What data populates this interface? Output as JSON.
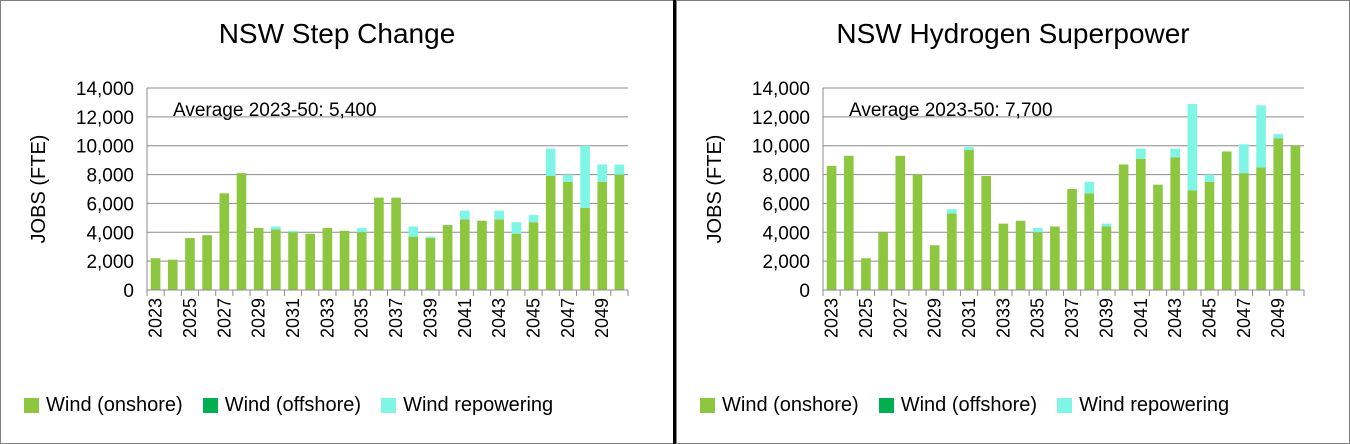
{
  "chart_data": [
    {
      "type": "bar",
      "stacked": true,
      "title": "NSW Step Change",
      "ylabel": "JOBS (FTE)",
      "xlabel": "",
      "ylim": [
        0,
        14000
      ],
      "yticks": [
        "0",
        "2,000",
        "4,000",
        "6,000",
        "8,000",
        "10,000",
        "12,000",
        "14,000"
      ],
      "xtick_labels": [
        "2023",
        "2025",
        "2027",
        "2029",
        "2031",
        "2033",
        "2035",
        "2037",
        "2039",
        "2041",
        "2043",
        "2045",
        "2047",
        "2049"
      ],
      "annotation": "Average 2023-50: 5,400",
      "categories": [
        "2023",
        "2024",
        "2025",
        "2026",
        "2027",
        "2028",
        "2029",
        "2030",
        "2031",
        "2032",
        "2033",
        "2034",
        "2035",
        "2036",
        "2037",
        "2038",
        "2039",
        "2040",
        "2041",
        "2042",
        "2043",
        "2044",
        "2045",
        "2046",
        "2047",
        "2048",
        "2049",
        "2050"
      ],
      "series": [
        {
          "name": "Wind (onshore)",
          "color": "#8dc63f",
          "values": [
            2200,
            2100,
            3600,
            3800,
            6700,
            8100,
            4300,
            4200,
            4000,
            3900,
            4300,
            4100,
            4000,
            6400,
            6400,
            3700,
            3600,
            4500,
            4900,
            4800,
            4900,
            3900,
            4700,
            7900,
            7500,
            5700,
            7500,
            8000
          ]
        },
        {
          "name": "Wind (offshore)",
          "color": "#00b050",
          "values": [
            0,
            0,
            0,
            0,
            0,
            0,
            0,
            0,
            0,
            0,
            0,
            0,
            0,
            0,
            0,
            0,
            0,
            0,
            0,
            0,
            0,
            0,
            0,
            0,
            0,
            0,
            0,
            0
          ]
        },
        {
          "name": "Wind repowering",
          "color": "#7ff5e6",
          "values": [
            0,
            0,
            0,
            0,
            0,
            0,
            0,
            200,
            100,
            0,
            0,
            0,
            300,
            0,
            0,
            700,
            100,
            0,
            600,
            0,
            600,
            800,
            500,
            1900,
            500,
            4300,
            1200,
            700
          ]
        }
      ],
      "legend_position": "bottom"
    },
    {
      "type": "bar",
      "stacked": true,
      "title": "NSW Hydrogen Superpower",
      "ylabel": "JOBS (FTE)",
      "xlabel": "",
      "ylim": [
        0,
        14000
      ],
      "yticks": [
        "0",
        "2,000",
        "4,000",
        "6,000",
        "8,000",
        "10,000",
        "12,000",
        "14,000"
      ],
      "xtick_labels": [
        "2023",
        "2025",
        "2027",
        "2029",
        "2031",
        "2033",
        "2035",
        "2037",
        "2039",
        "2041",
        "2043",
        "2045",
        "2047",
        "2049"
      ],
      "annotation": "Average 2023-50: 7,700",
      "categories": [
        "2023",
        "2024",
        "2025",
        "2026",
        "2027",
        "2028",
        "2029",
        "2030",
        "2031",
        "2032",
        "2033",
        "2034",
        "2035",
        "2036",
        "2037",
        "2038",
        "2039",
        "2040",
        "2041",
        "2042",
        "2043",
        "2044",
        "2045",
        "2046",
        "2047",
        "2048",
        "2049",
        "2050"
      ],
      "series": [
        {
          "name": "Wind (onshore)",
          "color": "#8dc63f",
          "values": [
            8600,
            9300,
            2200,
            4000,
            9300,
            8000,
            3100,
            5300,
            9700,
            7900,
            4600,
            4800,
            4000,
            4400,
            7000,
            6700,
            4400,
            8700,
            9100,
            7300,
            9200,
            6900,
            7500,
            9600,
            8100,
            8500,
            10500,
            10000
          ]
        },
        {
          "name": "Wind (offshore)",
          "color": "#00b050",
          "values": [
            0,
            0,
            0,
            0,
            0,
            0,
            0,
            0,
            0,
            0,
            0,
            0,
            0,
            0,
            0,
            0,
            0,
            0,
            0,
            0,
            0,
            0,
            0,
            0,
            0,
            0,
            0,
            0
          ]
        },
        {
          "name": "Wind repowering",
          "color": "#7ff5e6",
          "values": [
            0,
            0,
            0,
            0,
            0,
            0,
            0,
            300,
            200,
            0,
            0,
            0,
            300,
            0,
            0,
            800,
            200,
            0,
            700,
            0,
            600,
            6000,
            500,
            0,
            2000,
            4300,
            300,
            0
          ]
        }
      ],
      "legend_position": "bottom"
    }
  ],
  "legend": [
    {
      "label": "Wind (onshore)",
      "color": "#8dc63f"
    },
    {
      "label": "Wind (offshore)",
      "color": "#00b050"
    },
    {
      "label": "Wind repowering",
      "color": "#7ff5e6"
    }
  ]
}
